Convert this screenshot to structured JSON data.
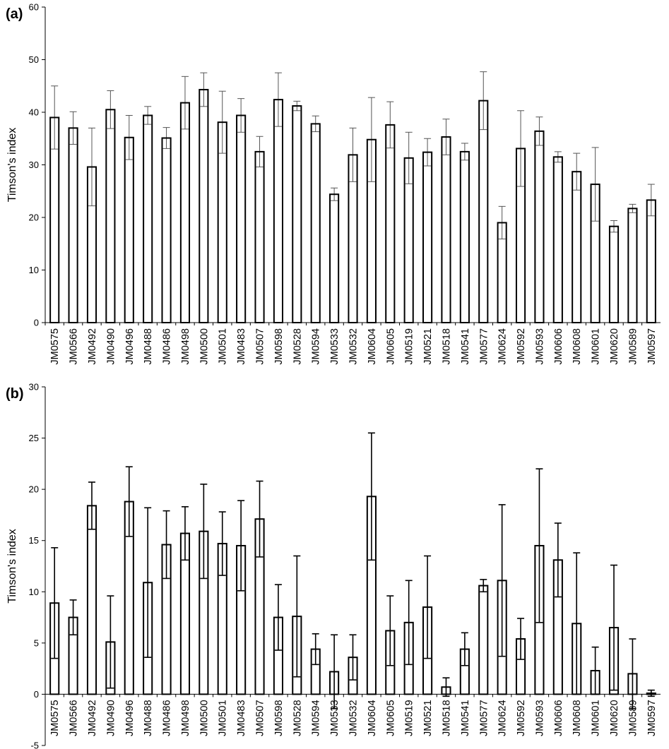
{
  "chart_data": [
    {
      "type": "bar",
      "panel_label": "(a)",
      "ylabel": "Timson's index",
      "ylim": [
        0,
        60
      ],
      "yticks": [
        0,
        10,
        20,
        30,
        40,
        50,
        60
      ],
      "grid": false,
      "categories": [
        "JM0575",
        "JM0566",
        "JM0492",
        "JM0490",
        "JM0496",
        "JM0488",
        "JM0486",
        "JM0498",
        "JM0500",
        "JM0501",
        "JM0483",
        "JM0507",
        "JM0598",
        "JM0528",
        "JM0594",
        "JM0533",
        "JM0532",
        "JM0604",
        "JM0605",
        "JM0519",
        "JM0521",
        "JM0518",
        "JM0541",
        "JM0577",
        "JM0624",
        "JM0592",
        "JM0593",
        "JM0606",
        "JM0608",
        "JM0601",
        "JM0620",
        "JM0589",
        "JM0597"
      ],
      "values": [
        39.0,
        37.0,
        29.6,
        40.5,
        35.2,
        39.4,
        35.1,
        41.8,
        44.3,
        38.1,
        39.4,
        32.5,
        42.4,
        41.2,
        37.8,
        24.4,
        31.9,
        34.8,
        37.6,
        31.3,
        32.4,
        35.3,
        32.5,
        42.2,
        19.0,
        33.1,
        36.4,
        31.5,
        28.7,
        26.3,
        18.3,
        21.7,
        23.3
      ],
      "errors": [
        6.0,
        3.1,
        7.4,
        3.6,
        4.2,
        1.7,
        2.0,
        5.0,
        3.2,
        5.9,
        3.2,
        2.9,
        5.1,
        0.9,
        1.5,
        1.2,
        5.1,
        8.0,
        4.4,
        4.9,
        2.6,
        3.4,
        1.6,
        5.5,
        3.1,
        7.2,
        2.7,
        1.0,
        3.5,
        7.0,
        1.1,
        0.8,
        3.0
      ]
    },
    {
      "type": "bar",
      "panel_label": "(b)",
      "ylabel": "Timson's index",
      "ylim": [
        -5,
        30
      ],
      "yticks": [
        -5,
        0,
        5,
        10,
        15,
        20,
        25,
        30
      ],
      "grid": false,
      "categories": [
        "JM0575",
        "JM0566",
        "JM0492",
        "JM0490",
        "JM0496",
        "JM0488",
        "JM0486",
        "JM0498",
        "JM0500",
        "JM0501",
        "JM0483",
        "JM0507",
        "JM0598",
        "JM0528",
        "JM0594",
        "JM0533",
        "JM0532",
        "JM0604",
        "JM0605",
        "JM0519",
        "JM0521",
        "JM0518",
        "JM0541",
        "JM0577",
        "JM0624",
        "JM0592",
        "JM0593",
        "JM0606",
        "JM0608",
        "JM0601",
        "JM0620",
        "JM0589",
        "JM0597"
      ],
      "values": [
        8.9,
        7.5,
        18.4,
        5.1,
        18.8,
        10.9,
        14.6,
        15.7,
        15.9,
        14.7,
        14.5,
        17.1,
        7.5,
        7.6,
        4.4,
        2.2,
        3.6,
        19.3,
        6.2,
        7.0,
        8.5,
        0.7,
        4.4,
        10.6,
        11.1,
        5.4,
        14.5,
        13.1,
        6.9,
        2.3,
        6.5,
        2.0,
        0.1
      ],
      "errors": [
        5.4,
        1.7,
        2.3,
        4.5,
        3.4,
        7.3,
        3.3,
        2.6,
        4.6,
        3.1,
        4.4,
        3.7,
        3.2,
        5.9,
        1.5,
        3.6,
        2.2,
        6.2,
        3.4,
        4.1,
        5.0,
        0.9,
        1.6,
        0.6,
        7.4,
        2.0,
        7.5,
        3.6,
        6.9,
        2.3,
        6.1,
        3.4,
        0.3
      ]
    }
  ]
}
